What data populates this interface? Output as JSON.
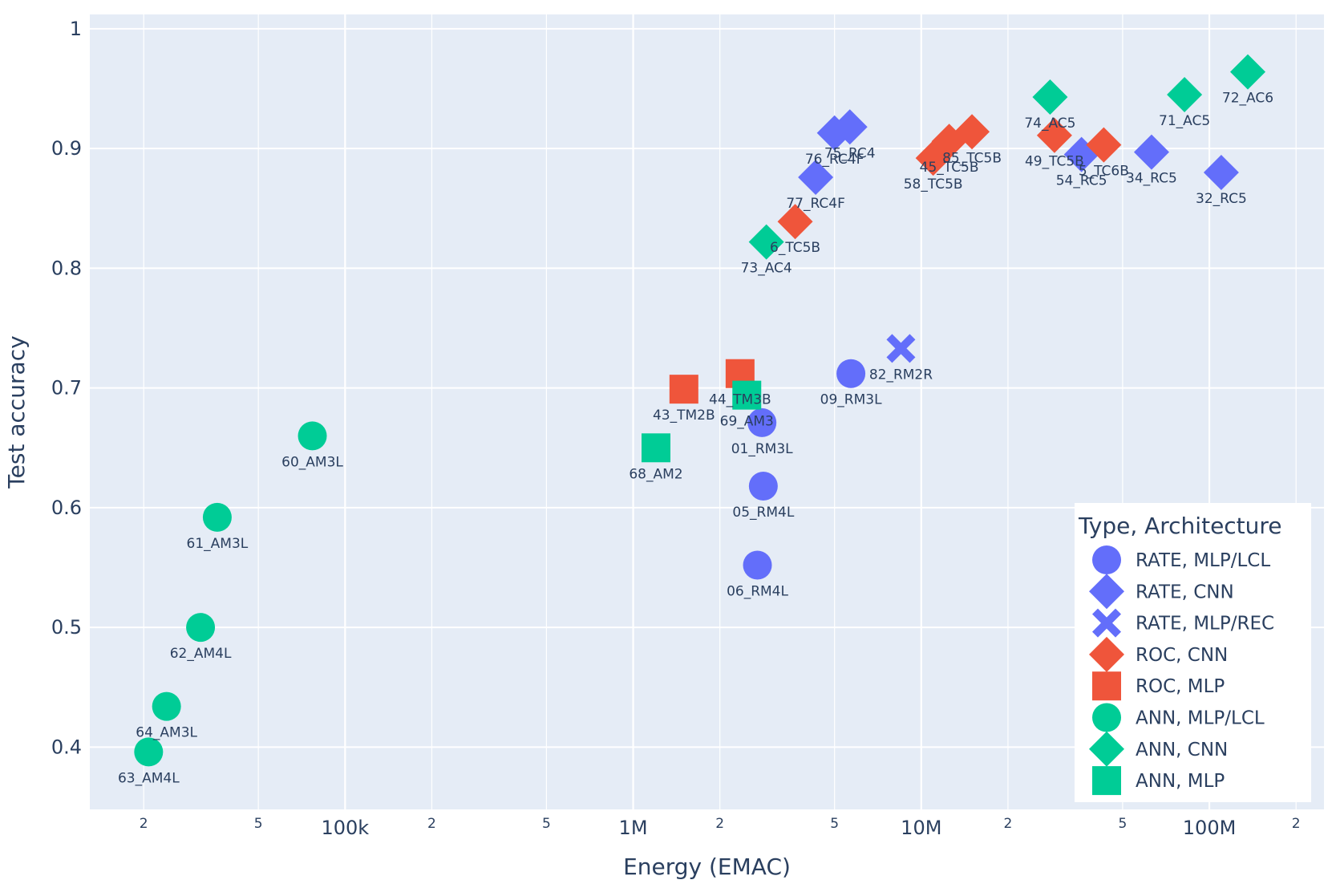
{
  "chart_data": {
    "type": "scatter",
    "xscale": "log",
    "xlabel": "Energy (EMAC)",
    "ylabel": "Test accuracy",
    "xlim": [
      13000,
      250000000
    ],
    "ylim": [
      0.348,
      1.012
    ],
    "grid": true,
    "colors": {
      "RATE": "#636efa",
      "ROC": "#ef553b",
      "ANN": "#00cc96",
      "plot_bg": "#e5ecf6",
      "text": "#2a3f5f",
      "grid": "#ffffff"
    },
    "yticks": [
      {
        "value": 0.4,
        "label": "0.4"
      },
      {
        "value": 0.5,
        "label": "0.5"
      },
      {
        "value": 0.6,
        "label": "0.6"
      },
      {
        "value": 0.7,
        "label": "0.7"
      },
      {
        "value": 0.8,
        "label": "0.8"
      },
      {
        "value": 0.9,
        "label": "0.9"
      },
      {
        "value": 1.0,
        "label": "1"
      }
    ],
    "xticks": [
      {
        "value": 20000,
        "label": "2",
        "major": false
      },
      {
        "value": 50000,
        "label": "5",
        "major": false
      },
      {
        "value": 100000,
        "label": "100k",
        "major": true
      },
      {
        "value": 200000,
        "label": "2",
        "major": false
      },
      {
        "value": 500000,
        "label": "5",
        "major": false
      },
      {
        "value": 1000000,
        "label": "1M",
        "major": true
      },
      {
        "value": 2000000,
        "label": "2",
        "major": false
      },
      {
        "value": 5000000,
        "label": "5",
        "major": false
      },
      {
        "value": 10000000,
        "label": "10M",
        "major": true
      },
      {
        "value": 20000000,
        "label": "2",
        "major": false
      },
      {
        "value": 50000000,
        "label": "5",
        "major": false
      },
      {
        "value": 100000000,
        "label": "100M",
        "major": true
      },
      {
        "value": 200000000,
        "label": "2",
        "major": false
      }
    ],
    "legend": {
      "title": "Type, Architecture",
      "position": "bottom-right",
      "entries": [
        {
          "name": "RATE, MLP/LCL",
          "color": "#636efa",
          "symbol": "circle"
        },
        {
          "name": "RATE, CNN",
          "color": "#636efa",
          "symbol": "diamond"
        },
        {
          "name": "RATE, MLP/REC",
          "color": "#636efa",
          "symbol": "x"
        },
        {
          "name": "ROC, CNN",
          "color": "#ef553b",
          "symbol": "diamond"
        },
        {
          "name": "ROC, MLP",
          "color": "#ef553b",
          "symbol": "square"
        },
        {
          "name": "ANN, MLP/LCL",
          "color": "#00cc96",
          "symbol": "circle"
        },
        {
          "name": "ANN, CNN",
          "color": "#00cc96",
          "symbol": "diamond"
        },
        {
          "name": "ANN, MLP",
          "color": "#00cc96",
          "symbol": "square"
        }
      ]
    },
    "series": [
      {
        "name": "RATE, MLP/LCL",
        "color": "#636efa",
        "symbol": "circle",
        "points": [
          {
            "x": 2800000,
            "y": 0.671,
            "label": "01_RM3L"
          },
          {
            "x": 2830000,
            "y": 0.618,
            "label": "05_RM4L"
          },
          {
            "x": 2700000,
            "y": 0.552,
            "label": "06_RM4L"
          },
          {
            "x": 5700000,
            "y": 0.712,
            "label": "09_RM3L"
          }
        ]
      },
      {
        "name": "RATE, CNN",
        "color": "#636efa",
        "symbol": "diamond",
        "points": [
          {
            "x": 5000000,
            "y": 0.913,
            "label": "76_RC4F"
          },
          {
            "x": 5650000,
            "y": 0.918,
            "label": "75_RC4"
          },
          {
            "x": 4300000,
            "y": 0.876,
            "label": "77_RC4F"
          },
          {
            "x": 36000000,
            "y": 0.895,
            "label": "54_RC5"
          },
          {
            "x": 63000000,
            "y": 0.897,
            "label": "34_RC5"
          },
          {
            "x": 110000000,
            "y": 0.88,
            "label": "32_RC5"
          }
        ]
      },
      {
        "name": "RATE, MLP/REC",
        "color": "#636efa",
        "symbol": "x",
        "points": [
          {
            "x": 8500000,
            "y": 0.733,
            "label": "82_RM2R"
          }
        ]
      },
      {
        "name": "ROC, CNN",
        "color": "#ef553b",
        "symbol": "diamond",
        "points": [
          {
            "x": 3650000,
            "y": 0.839,
            "label": "6_TC5B"
          },
          {
            "x": 11000000,
            "y": 0.892,
            "label": "58_TC5B"
          },
          {
            "x": 12500000,
            "y": 0.906,
            "label": "45_TC5B"
          },
          {
            "x": 15000000,
            "y": 0.914,
            "label": "85_TC5B"
          },
          {
            "x": 29000000,
            "y": 0.911,
            "label": "49_TC5B"
          },
          {
            "x": 43000000,
            "y": 0.903,
            "label": "5_TC6B"
          }
        ]
      },
      {
        "name": "ROC, MLP",
        "color": "#ef553b",
        "symbol": "square",
        "points": [
          {
            "x": 1500000,
            "y": 0.699,
            "label": "43_TM2B"
          },
          {
            "x": 2350000,
            "y": 0.712,
            "label": "44_TM3B"
          }
        ]
      },
      {
        "name": "ANN, MLP/LCL",
        "color": "#00cc96",
        "symbol": "circle",
        "points": [
          {
            "x": 77000,
            "y": 0.66,
            "label": "60_AM3L"
          },
          {
            "x": 36000,
            "y": 0.592,
            "label": "61_AM3L"
          },
          {
            "x": 31500,
            "y": 0.5,
            "label": "62_AM4L"
          },
          {
            "x": 24000,
            "y": 0.434,
            "label": "64_AM3L"
          },
          {
            "x": 20800,
            "y": 0.396,
            "label": "63_AM4L"
          }
        ]
      },
      {
        "name": "ANN, CNN",
        "color": "#00cc96",
        "symbol": "diamond",
        "points": [
          {
            "x": 2900000,
            "y": 0.822,
            "label": "73_AC4"
          },
          {
            "x": 28000000,
            "y": 0.943,
            "label": "74_AC5"
          },
          {
            "x": 82000000,
            "y": 0.945,
            "label": "71_AC5"
          },
          {
            "x": 136000000,
            "y": 0.964,
            "label": "72_AC6"
          }
        ]
      },
      {
        "name": "ANN, MLP",
        "color": "#00cc96",
        "symbol": "square",
        "points": [
          {
            "x": 1200000,
            "y": 0.65,
            "label": "68_AM2"
          },
          {
            "x": 2480000,
            "y": 0.694,
            "label": "69_AM3"
          }
        ]
      }
    ]
  }
}
